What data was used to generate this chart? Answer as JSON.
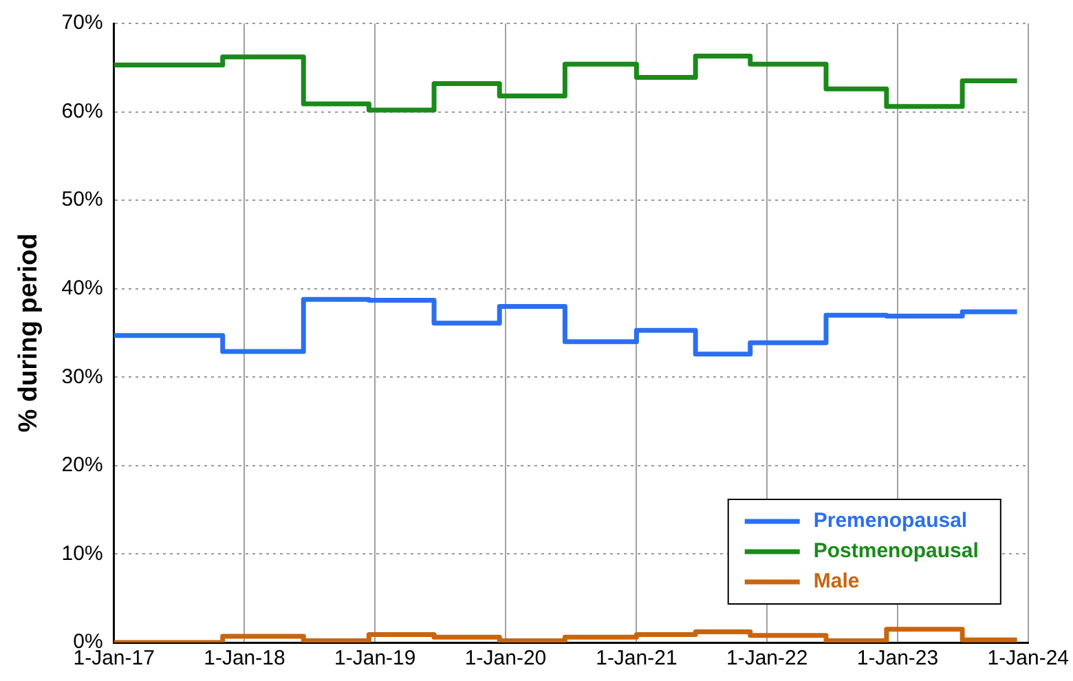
{
  "chart_data": {
    "type": "step",
    "ylabel": "% during period",
    "x": [
      "2017-01-01",
      "2017-11-01",
      "2018-06-15",
      "2018-12-15",
      "2019-06-15",
      "2019-12-15",
      "2020-06-15",
      "2021-01-01",
      "2021-06-15",
      "2021-11-15",
      "2022-06-15",
      "2022-12-01",
      "2023-07-01",
      "2023-12-01"
    ],
    "series": [
      {
        "name": "Premenopausal",
        "color": "#2b6ff0",
        "values": [
          34.7,
          32.9,
          38.8,
          38.7,
          36.1,
          38.0,
          34.0,
          35.3,
          32.6,
          33.9,
          37.0,
          36.9,
          37.4,
          37.4
        ]
      },
      {
        "name": "Postmenopausal",
        "color": "#1a8a1a",
        "values": [
          65.3,
          66.2,
          60.9,
          60.2,
          63.2,
          61.8,
          65.4,
          63.9,
          66.3,
          65.4,
          62.6,
          60.6,
          63.5,
          63.5
        ]
      },
      {
        "name": "Male",
        "color": "#c8650e",
        "values": [
          0.0,
          0.7,
          0.2,
          0.9,
          0.6,
          0.2,
          0.6,
          0.9,
          1.2,
          0.8,
          0.2,
          1.5,
          0.3,
          0.3
        ]
      }
    ],
    "xlim": [
      "2017-01-01",
      "2024-01-01"
    ],
    "xticks": [
      {
        "value": "2017-01-01",
        "label": "1-Jan-17"
      },
      {
        "value": "2018-01-01",
        "label": "1-Jan-18"
      },
      {
        "value": "2019-01-01",
        "label": "1-Jan-19"
      },
      {
        "value": "2020-01-01",
        "label": "1-Jan-20"
      },
      {
        "value": "2021-01-01",
        "label": "1-Jan-21"
      },
      {
        "value": "2022-01-01",
        "label": "1-Jan-22"
      },
      {
        "value": "2023-01-01",
        "label": "1-Jan-23"
      },
      {
        "value": "2024-01-01",
        "label": "1-Jan-24"
      }
    ],
    "ylim": [
      0,
      70
    ],
    "yticks": [
      {
        "value": 0,
        "label": "0%"
      },
      {
        "value": 10,
        "label": "10%"
      },
      {
        "value": 20,
        "label": "20%"
      },
      {
        "value": 30,
        "label": "30%"
      },
      {
        "value": 40,
        "label": "40%"
      },
      {
        "value": 50,
        "label": "50%"
      },
      {
        "value": 60,
        "label": "60%"
      },
      {
        "value": 70,
        "label": "70%"
      }
    ],
    "grid": true,
    "legend": "bottom right",
    "marker": "none",
    "line_style": "solid"
  }
}
